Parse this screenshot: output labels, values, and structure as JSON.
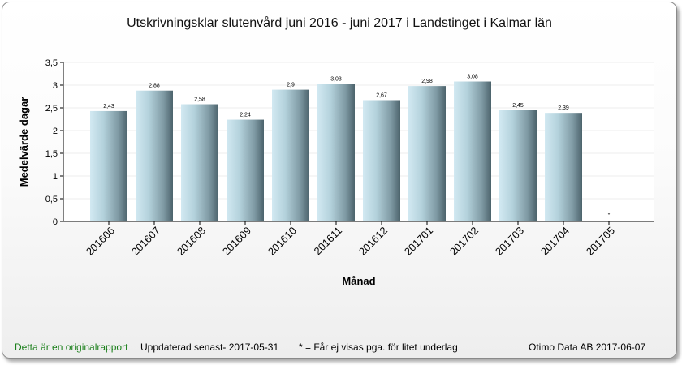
{
  "title": "Utskrivningsklar slutenvård juni 2016 - juni 2017 i Landstinget i Kalmar län",
  "footer": {
    "original_report": "Detta är en originalrapport",
    "updated": "Uppdaterad senast- 2017-05-31",
    "note": "* = Får ej visas pga. för litet underlag",
    "vendor": "Otimo Data AB 2017-06-07"
  },
  "colors": {
    "bar_light": "#cfe6f0",
    "bar_dark": "#4e6670",
    "footer_green": "#1a7f1a"
  },
  "chart_data": {
    "type": "bar",
    "title": "Utskrivningsklar slutenvård juni 2016 - juni 2017 i Landstinget i Kalmar län",
    "xlabel": "Månad",
    "ylabel": "Medelvärde dagar",
    "ylim": [
      0,
      3.5
    ],
    "yticks": [
      "0",
      "0,5",
      "1",
      "1,5",
      "2",
      "2,5",
      "3",
      "3,5"
    ],
    "categories": [
      "201606",
      "201607",
      "201608",
      "201609",
      "201610",
      "201611",
      "201612",
      "201701",
      "201702",
      "201703",
      "201704",
      "201705"
    ],
    "values": [
      2.43,
      2.88,
      2.58,
      2.24,
      2.9,
      3.03,
      2.67,
      2.98,
      3.08,
      2.45,
      2.39,
      null
    ],
    "data_labels": [
      "2,43",
      "2,88",
      "2,58",
      "2,24",
      "2,9",
      "3,03",
      "2,67",
      "2,98",
      "3,08",
      "2,45",
      "2,39",
      "*"
    ],
    "grid": true,
    "legend": "none"
  }
}
